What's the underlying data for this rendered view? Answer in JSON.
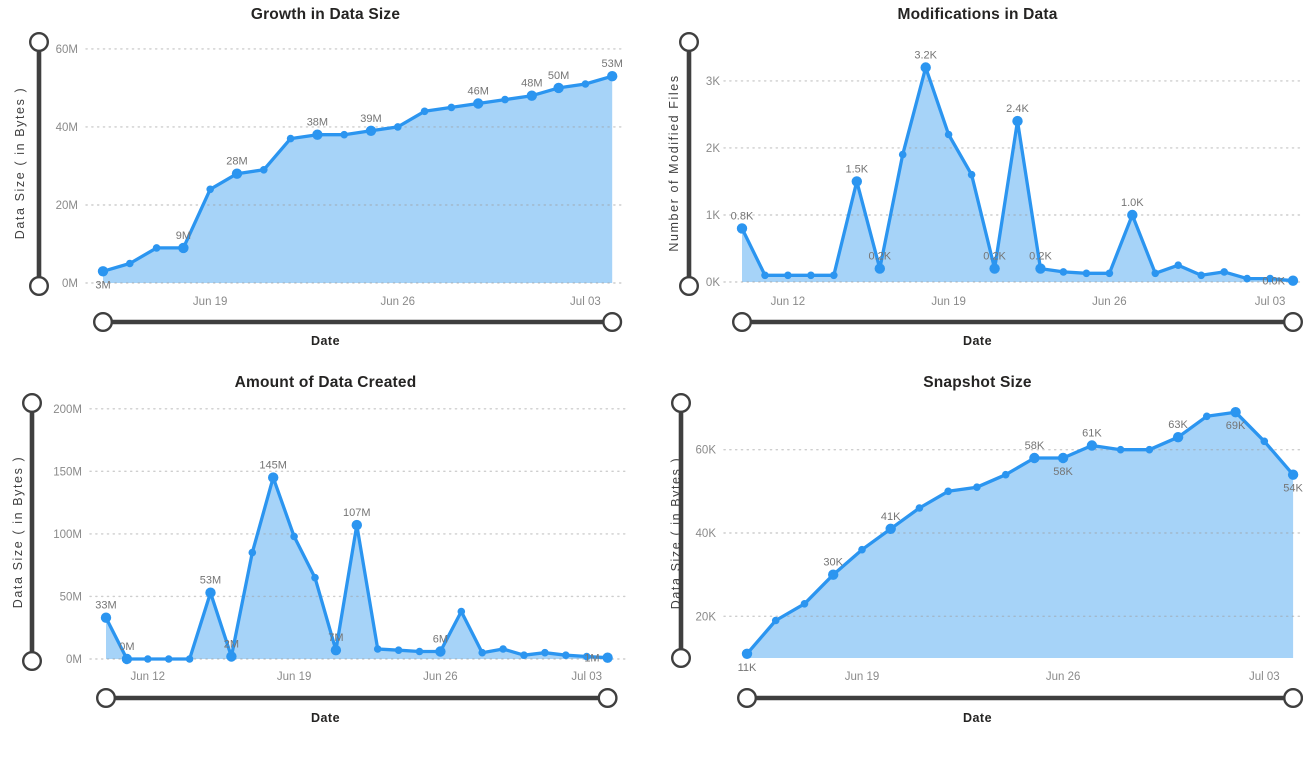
{
  "page": {
    "background": "#ffffff"
  },
  "colors": {
    "line": "#2B95F0",
    "area_fill": "#A6D3F8",
    "gridline": "#9e9e9e",
    "tick_label": "#8a8a8a",
    "data_label": "#757575",
    "title": "#252423",
    "axis_title": "#3f3f3f",
    "slider_track": "#3f3f3f",
    "slider_handle_fill": "#ffffff"
  },
  "chart_data": [
    {
      "type": "area",
      "title": "Growth in Data Size",
      "ylabel": "Data Size ( in Bytes )",
      "xlabel": "Date",
      "unit": "M",
      "ylim": [
        0,
        61.5
      ],
      "yticks": [
        {
          "value": 0,
          "label": "0M"
        },
        {
          "value": 20,
          "label": "20M"
        },
        {
          "value": 40,
          "label": "40M"
        },
        {
          "value": 60,
          "label": "60M"
        }
      ],
      "dates": [
        "Jun 15",
        "Jun 16",
        "Jun 17",
        "Jun 18",
        "Jun 19",
        "Jun 20",
        "Jun 21",
        "Jun 22",
        "Jun 23",
        "Jun 24",
        "Jun 25",
        "Jun 26",
        "Jun 27",
        "Jun 28",
        "Jun 29",
        "Jun 30",
        "Jul 01",
        "Jul 02",
        "Jul 03",
        "Jul 04"
      ],
      "values": [
        3,
        5,
        9,
        9,
        24,
        28,
        29,
        37,
        38,
        38,
        39,
        40,
        44,
        45,
        46,
        47,
        48,
        50,
        51,
        53
      ],
      "xticks": [
        {
          "index": 4,
          "label": "Jun 19"
        },
        {
          "index": 11,
          "label": "Jun 26"
        },
        {
          "index": 18,
          "label": "Jul 03"
        }
      ],
      "point_labels": [
        {
          "index": 0,
          "text": "3M",
          "position": "below"
        },
        {
          "index": 3,
          "text": "9M",
          "position": "above"
        },
        {
          "index": 5,
          "text": "28M",
          "position": "above"
        },
        {
          "index": 8,
          "text": "38M",
          "position": "above"
        },
        {
          "index": 10,
          "text": "39M",
          "position": "above"
        },
        {
          "index": 14,
          "text": "46M",
          "position": "above"
        },
        {
          "index": 16,
          "text": "48M",
          "position": "above"
        },
        {
          "index": 17,
          "text": "50M",
          "position": "above"
        },
        {
          "index": 19,
          "text": "53M",
          "position": "above"
        }
      ]
    },
    {
      "type": "area",
      "title": "Modifications in Data",
      "ylabel": "Number of Modified Files",
      "xlabel": "Date",
      "unit": "K",
      "ylim": [
        0,
        3.58
      ],
      "yticks": [
        {
          "value": 0,
          "label": "0K"
        },
        {
          "value": 1,
          "label": "1K"
        },
        {
          "value": 2,
          "label": "2K"
        },
        {
          "value": 3,
          "label": "3K"
        }
      ],
      "dates": [
        "Jun 10",
        "Jun 11",
        "Jun 12",
        "Jun 13",
        "Jun 14",
        "Jun 15",
        "Jun 16",
        "Jun 17",
        "Jun 18",
        "Jun 19",
        "Jun 20",
        "Jun 21",
        "Jun 22",
        "Jun 23",
        "Jun 24",
        "Jun 25",
        "Jun 26",
        "Jun 27",
        "Jun 28",
        "Jun 29",
        "Jun 30",
        "Jul 01",
        "Jul 02",
        "Jul 03",
        "Jul 04"
      ],
      "values": [
        0.8,
        0.1,
        0.1,
        0.1,
        0.1,
        1.5,
        0.2,
        1.9,
        3.2,
        2.2,
        1.6,
        0.2,
        2.4,
        0.2,
        0.15,
        0.13,
        0.13,
        1.0,
        0.13,
        0.25,
        0.1,
        0.15,
        0.05,
        0.05,
        0.02
      ],
      "xticks": [
        {
          "index": 2,
          "label": "Jun 12"
        },
        {
          "index": 9,
          "label": "Jun 19"
        },
        {
          "index": 16,
          "label": "Jun 26"
        },
        {
          "index": 23,
          "label": "Jul 03"
        }
      ],
      "point_labels": [
        {
          "index": 0,
          "text": "0.8K",
          "position": "above"
        },
        {
          "index": 5,
          "text": "1.5K",
          "position": "above"
        },
        {
          "index": 6,
          "text": "0.2K",
          "position": "above"
        },
        {
          "index": 8,
          "text": "3.2K",
          "position": "above"
        },
        {
          "index": 11,
          "text": "0.2K",
          "position": "above"
        },
        {
          "index": 12,
          "text": "2.4K",
          "position": "above"
        },
        {
          "index": 13,
          "text": "0.2K",
          "position": "above"
        },
        {
          "index": 17,
          "text": "1.0K",
          "position": "above"
        },
        {
          "index": 24,
          "text": "0.0K",
          "position": "left"
        }
      ]
    },
    {
      "type": "area",
      "title": "Amount of Data Created",
      "ylabel": "Data Size ( in Bytes )",
      "xlabel": "Date",
      "unit": "M",
      "ylim": [
        0,
        203
      ],
      "yticks": [
        {
          "value": 0,
          "label": "0M"
        },
        {
          "value": 50,
          "label": "50M"
        },
        {
          "value": 100,
          "label": "100M"
        },
        {
          "value": 150,
          "label": "150M"
        },
        {
          "value": 200,
          "label": "200M"
        }
      ],
      "dates": [
        "Jun 10",
        "Jun 11",
        "Jun 12",
        "Jun 13",
        "Jun 14",
        "Jun 15",
        "Jun 16",
        "Jun 17",
        "Jun 18",
        "Jun 19",
        "Jun 20",
        "Jun 21",
        "Jun 22",
        "Jun 23",
        "Jun 24",
        "Jun 25",
        "Jun 26",
        "Jun 27",
        "Jun 28",
        "Jun 29",
        "Jun 30",
        "Jul 01",
        "Jul 02",
        "Jul 03",
        "Jul 04"
      ],
      "values": [
        33,
        0,
        0,
        0,
        0,
        53,
        2,
        85,
        145,
        98,
        65,
        7,
        107,
        8,
        7,
        6,
        6,
        38,
        5,
        8,
        3,
        5,
        3,
        2,
        1
      ],
      "xticks": [
        {
          "index": 2,
          "label": "Jun 12"
        },
        {
          "index": 9,
          "label": "Jun 19"
        },
        {
          "index": 16,
          "label": "Jun 26"
        },
        {
          "index": 23,
          "label": "Jul 03"
        }
      ],
      "point_labels": [
        {
          "index": 0,
          "text": "33M",
          "position": "above"
        },
        {
          "index": 1,
          "text": "0M",
          "position": "above"
        },
        {
          "index": 5,
          "text": "53M",
          "position": "above"
        },
        {
          "index": 6,
          "text": "2M",
          "position": "above"
        },
        {
          "index": 8,
          "text": "145M",
          "position": "above"
        },
        {
          "index": 11,
          "text": "7M",
          "position": "above"
        },
        {
          "index": 12,
          "text": "107M",
          "position": "above"
        },
        {
          "index": 16,
          "text": "6M",
          "position": "above"
        },
        {
          "index": 24,
          "text": "1M",
          "position": "left"
        }
      ]
    },
    {
      "type": "area",
      "title": "Snapshot Size",
      "ylabel": "Data Size ( in Bytes )",
      "xlabel": "Date",
      "unit": "K",
      "ylim": [
        10,
        70
      ],
      "yticks": [
        {
          "value": 20,
          "label": "20K"
        },
        {
          "value": 40,
          "label": "40K"
        },
        {
          "value": 60,
          "label": "60K"
        }
      ],
      "dates": [
        "Jun 15",
        "Jun 16",
        "Jun 17",
        "Jun 18",
        "Jun 19",
        "Jun 20",
        "Jun 21",
        "Jun 22",
        "Jun 23",
        "Jun 24",
        "Jun 25",
        "Jun 26",
        "Jun 27",
        "Jun 28",
        "Jun 29",
        "Jun 30",
        "Jul 01",
        "Jul 02",
        "Jul 03",
        "Jul 04"
      ],
      "values": [
        11,
        19,
        23,
        30,
        36,
        41,
        46,
        50,
        51,
        54,
        58,
        58,
        61,
        60,
        60,
        63,
        68,
        69,
        62,
        54
      ],
      "xticks": [
        {
          "index": 4,
          "label": "Jun 19"
        },
        {
          "index": 11,
          "label": "Jun 26"
        },
        {
          "index": 18,
          "label": "Jul 03"
        }
      ],
      "point_labels": [
        {
          "index": 0,
          "text": "11K",
          "position": "below"
        },
        {
          "index": 3,
          "text": "30K",
          "position": "above"
        },
        {
          "index": 5,
          "text": "41K",
          "position": "above"
        },
        {
          "index": 10,
          "text": "58K",
          "position": "above"
        },
        {
          "index": 11,
          "text": "58K",
          "position": "below"
        },
        {
          "index": 12,
          "text": "61K",
          "position": "above"
        },
        {
          "index": 15,
          "text": "63K",
          "position": "above"
        },
        {
          "index": 17,
          "text": "69K",
          "position": "below"
        },
        {
          "index": 19,
          "text": "54K",
          "position": "below"
        }
      ]
    }
  ]
}
